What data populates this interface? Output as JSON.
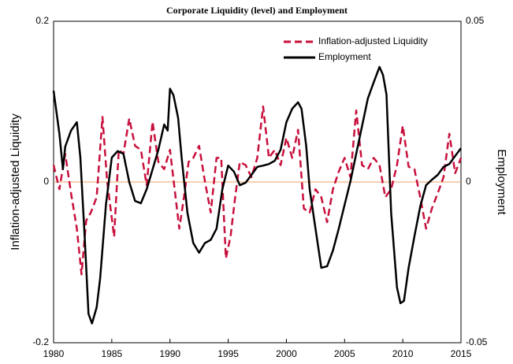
{
  "chart_data": {
    "type": "line",
    "title": "Corporate Liquidity (level) and Employment",
    "ylabel": "Inflation-adjusted Liquidity",
    "y2label": "Employment",
    "xlim": [
      1980,
      2015
    ],
    "xticks": [
      1980,
      1985,
      1990,
      1995,
      2000,
      2005,
      2010,
      2015
    ],
    "ylim": [
      -0.2,
      0.2
    ],
    "yticks": [
      -0.2,
      0,
      0.2
    ],
    "y2lim": [
      -0.05,
      0.05
    ],
    "y2ticks": [
      -0.05,
      0,
      0.05
    ],
    "reference_line": {
      "value": 0,
      "color": "#f0a060"
    },
    "legend": "upper right",
    "series": [
      {
        "name": "Inflation-adjusted Liquidity",
        "color": "#c8103c",
        "dash": true,
        "x": [
          1980,
          1980.5,
          1981,
          1981.5,
          1982,
          1982.4,
          1982.8,
          1983.2,
          1983.7,
          1984.2,
          1984.6,
          1985.2,
          1985.6,
          1986,
          1986.5,
          1987,
          1987.5,
          1988,
          1988.5,
          1989,
          1989.5,
          1990,
          1990.4,
          1990.8,
          1991.2,
          1991.6,
          1992,
          1992.5,
          1993,
          1993.5,
          1994,
          1994.4,
          1994.8,
          1995.2,
          1995.6,
          1996,
          1996.5,
          1997,
          1997.5,
          1998,
          1998.5,
          1999,
          1999.5,
          2000,
          2000.5,
          2001,
          2001.5,
          2002,
          2002.5,
          2003,
          2003.5,
          2004,
          2004.5,
          2005,
          2005.5,
          2006,
          2006.5,
          2007,
          2007.5,
          2008,
          2008.5,
          2009,
          2009.5,
          2010,
          2010.5,
          2011,
          2011.5,
          2012,
          2012.5,
          2013,
          2013.5,
          2014,
          2014.5,
          2015
        ],
        "values": [
          0.021,
          -0.009,
          0.035,
          -0.014,
          -0.058,
          -0.115,
          -0.048,
          -0.038,
          -0.019,
          0.081,
          0.001,
          -0.068,
          0.04,
          0.035,
          0.079,
          0.045,
          0.04,
          -0.004,
          0.075,
          0.025,
          0.016,
          0.04,
          -0.009,
          -0.058,
          -0.019,
          0.025,
          0.03,
          0.045,
          0.001,
          -0.038,
          0.03,
          0.03,
          -0.095,
          -0.068,
          -0.019,
          0.025,
          0.021,
          0.006,
          0.03,
          0.094,
          0.03,
          0.04,
          0.021,
          0.055,
          0.03,
          0.065,
          -0.033,
          -0.038,
          -0.009,
          -0.019,
          -0.05,
          -0.009,
          0.013,
          0.03,
          0.006,
          0.089,
          0.021,
          0.016,
          0.03,
          0.021,
          -0.019,
          -0.009,
          0.021,
          0.07,
          0.019,
          0.016,
          -0.019,
          -0.058,
          -0.033,
          -0.014,
          0.006,
          0.06,
          0.011,
          0.03
        ]
      },
      {
        "name": "Employment",
        "color": "#000000",
        "axis": "y2",
        "x": [
          1980,
          1980.5,
          1980.8,
          1981,
          1981.5,
          1982,
          1982.3,
          1982.7,
          1983,
          1983.3,
          1983.7,
          1984,
          1984.5,
          1985,
          1985.5,
          1986,
          1986.5,
          1987,
          1987.5,
          1988,
          1988.5,
          1989,
          1989.5,
          1989.8,
          1990,
          1990.3,
          1990.7,
          1991,
          1991.5,
          1992,
          1992.5,
          1993,
          1993.5,
          1994,
          1994.5,
          1995,
          1995.5,
          1996,
          1996.5,
          1997,
          1997.5,
          1998,
          1998.5,
          1999,
          1999.5,
          2000,
          2000.5,
          2001,
          2001.3,
          2001.7,
          2002,
          2002.5,
          2003,
          2003.5,
          2004,
          2004.5,
          2005,
          2005.5,
          2006,
          2006.5,
          2007,
          2007.5,
          2008,
          2008.3,
          2008.6,
          2009,
          2009.5,
          2009.8,
          2010.1,
          2010.5,
          2011,
          2011.5,
          2012,
          2012.5,
          2013,
          2013.5,
          2014,
          2014.5,
          2015
        ],
        "values": [
          0.0284,
          0.015,
          0.004,
          0.011,
          0.016,
          0.0186,
          0.0076,
          -0.019,
          -0.041,
          -0.044,
          -0.039,
          -0.03,
          -0.007,
          0.0076,
          0.0096,
          0.0088,
          0,
          -0.0059,
          -0.0066,
          -0.0022,
          0.0039,
          0.01,
          0.0179,
          0.016,
          0.029,
          0.027,
          0.0199,
          0.0076,
          -0.0096,
          -0.019,
          -0.022,
          -0.019,
          -0.018,
          -0.0145,
          -0.0022,
          0.0051,
          0.0032,
          -0.001,
          -0.0002,
          0.0022,
          0.0047,
          0.0051,
          0.0056,
          0.0066,
          0.01,
          0.0186,
          0.0228,
          0.0248,
          0.0228,
          0.0113,
          -0.0022,
          -0.0145,
          -0.0267,
          -0.0262,
          -0.0213,
          -0.0145,
          -0.0071,
          0.0002,
          0.0088,
          0.0174,
          0.026,
          0.031,
          0.0358,
          0.0333,
          0.0272,
          -0.0096,
          -0.0328,
          -0.0377,
          -0.037,
          -0.0267,
          -0.0169,
          -0.0076,
          -0.001,
          0.0007,
          0.0022,
          0.0047,
          0.0056,
          0.0081,
          0.0105
        ]
      }
    ]
  }
}
